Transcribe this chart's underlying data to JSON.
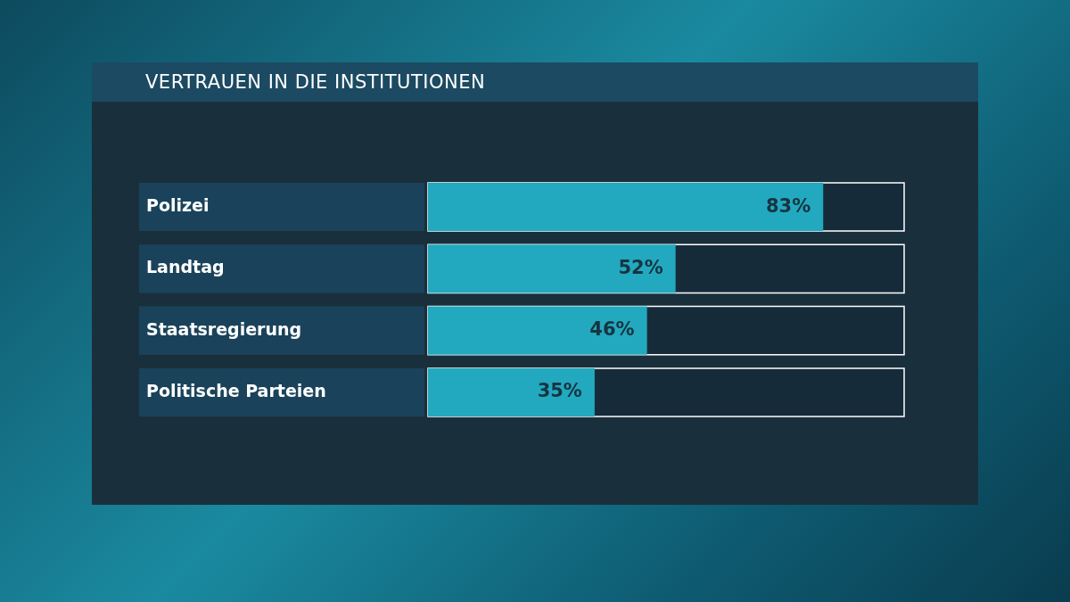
{
  "chart_data": {
    "type": "bar",
    "orientation": "horizontal",
    "title": "VERTRAUEN IN DIE INSTITUTIONEN",
    "categories": [
      "Polizei",
      "Landtag",
      "Staatsregierung",
      "Politische Parteien"
    ],
    "values": [
      83,
      52,
      46,
      35
    ],
    "value_labels": [
      "83%",
      "52%",
      "46%",
      "35%"
    ],
    "color": "#22a9bf",
    "xlim": [
      0,
      100
    ],
    "tick_labels": "y",
    "grid": false,
    "legend": false
  }
}
